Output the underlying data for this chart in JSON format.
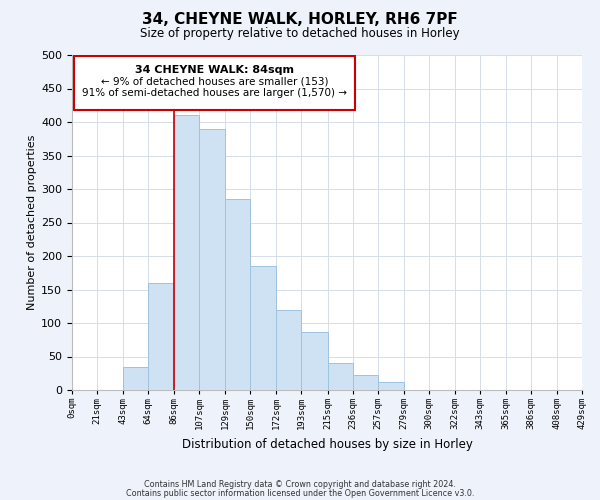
{
  "title": "34, CHEYNE WALK, HORLEY, RH6 7PF",
  "subtitle": "Size of property relative to detached houses in Horley",
  "xlabel": "Distribution of detached houses by size in Horley",
  "ylabel": "Number of detached properties",
  "bin_edges": [
    0,
    21,
    43,
    64,
    86,
    107,
    129,
    150,
    172,
    193,
    215,
    236,
    257,
    279,
    300,
    322,
    343,
    365,
    386,
    408,
    429
  ],
  "bin_labels": [
    "0sqm",
    "21sqm",
    "43sqm",
    "64sqm",
    "86sqm",
    "107sqm",
    "129sqm",
    "150sqm",
    "172sqm",
    "193sqm",
    "215sqm",
    "236sqm",
    "257sqm",
    "279sqm",
    "300sqm",
    "322sqm",
    "343sqm",
    "365sqm",
    "386sqm",
    "408sqm",
    "429sqm"
  ],
  "counts": [
    0,
    0,
    35,
    160,
    410,
    390,
    285,
    185,
    120,
    87,
    40,
    22,
    12,
    0,
    0,
    0,
    0,
    0,
    0,
    0
  ],
  "bar_color": "#cfe2f3",
  "bar_edge_color": "#9dc3df",
  "marker_line_color": "#cc0000",
  "ylim": [
    0,
    500
  ],
  "yticks": [
    0,
    50,
    100,
    150,
    200,
    250,
    300,
    350,
    400,
    450,
    500
  ],
  "annotation_title": "34 CHEYNE WALK: 84sqm",
  "annotation_line1": "← 9% of detached houses are smaller (153)",
  "annotation_line2": "91% of semi-detached houses are larger (1,570) →",
  "footer_line1": "Contains HM Land Registry data © Crown copyright and database right 2024.",
  "footer_line2": "Contains public sector information licensed under the Open Government Licence v3.0.",
  "bg_color": "#eef3fb",
  "plot_bg_color": "#ffffff",
  "grid_color": "#d5dde8"
}
